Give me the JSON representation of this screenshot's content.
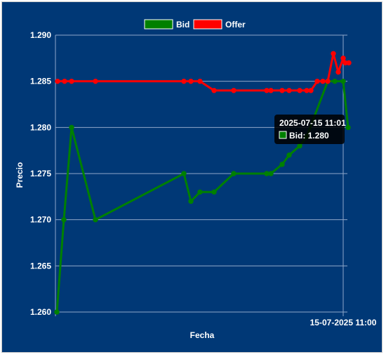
{
  "chart_data": {
    "type": "line",
    "xlabel": "Fecha",
    "ylabel": "Precio",
    "ylim": [
      1.26,
      1.29
    ],
    "yticks": [
      "1.260",
      "1.265",
      "1.270",
      "1.275",
      "1.280",
      "1.285",
      "1.290"
    ],
    "xtick_label": "15-07-2025 11:00",
    "legend_position": "top-center",
    "grid": true,
    "series": [
      {
        "name": "Bid",
        "color": "#008000",
        "values": [
          1.26,
          1.27,
          1.28,
          1.27,
          1.275,
          1.272,
          1.273,
          1.273,
          1.275,
          1.275,
          1.275,
          1.276,
          1.277,
          1.278,
          1.279,
          1.285,
          1.285,
          1.285,
          1.28
        ]
      },
      {
        "name": "Offer",
        "color": "#ff0000",
        "values": [
          1.285,
          1.285,
          1.285,
          1.285,
          1.285,
          1.285,
          1.285,
          1.284,
          1.284,
          1.284,
          1.284,
          1.284,
          1.284,
          1.284,
          1.284,
          1.284,
          1.285,
          1.285,
          1.285,
          1.288,
          1.286,
          1.2875,
          1.287,
          1.287
        ]
      }
    ],
    "tooltip": {
      "title": "2025-07-15 11:01",
      "label": "Bid: 1.280",
      "color": "#008000"
    }
  }
}
